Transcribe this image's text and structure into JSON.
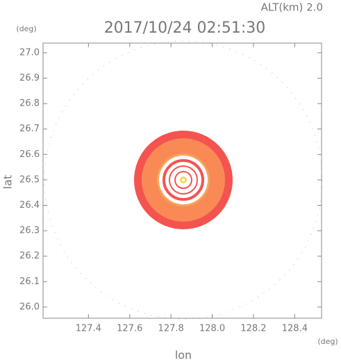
{
  "chart_data": {
    "type": "radar-image",
    "title": "2017/10/24 02:51:30",
    "altitude_label": "ALT(km) 2.0",
    "x_label": "lon",
    "y_label": "lat",
    "x_unit": "(deg)",
    "y_unit": "(deg)",
    "xlim": [
      127.18,
      128.53
    ],
    "ylim": [
      25.956,
      27.038
    ],
    "xticks": [
      127.4,
      127.6,
      127.8,
      {
        "value": 128,
        "label": "128.0"
      },
      128.2,
      128.4
    ],
    "yticks": [
      {
        "value": 26,
        "label": "26.0"
      },
      26.1,
      26.2,
      26.3,
      26.4,
      26.5,
      26.6,
      26.7,
      26.8,
      26.9,
      {
        "value": 27,
        "label": "27.0"
      }
    ]
  }
}
